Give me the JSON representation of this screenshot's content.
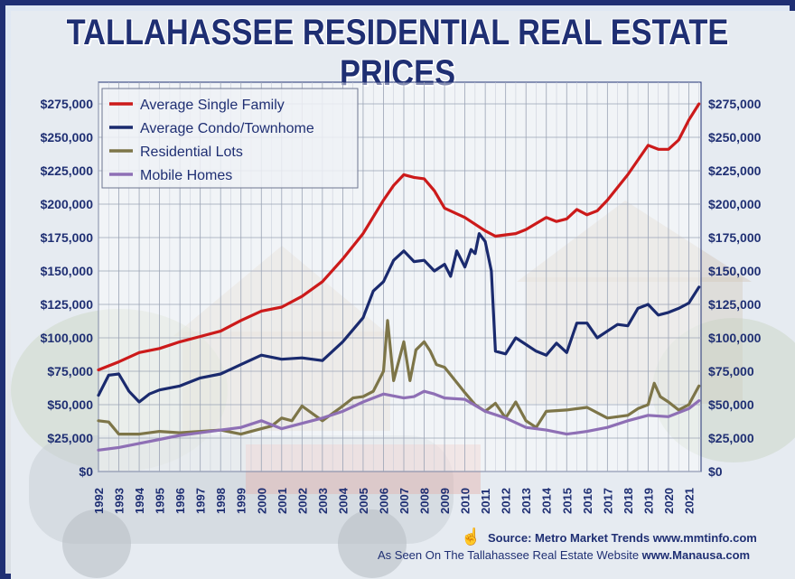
{
  "chart_data": {
    "type": "line",
    "title": "TALLAHASSEE RESIDENTIAL REAL ESTATE PRICES",
    "x_tick_labels": [
      "1992",
      "1993",
      "1994",
      "1995",
      "1996",
      "1997",
      "1998",
      "1999",
      "2000",
      "2001",
      "2002",
      "2003",
      "2004",
      "2005",
      "2006",
      "2007",
      "2008",
      "2009",
      "2010",
      "2011",
      "2012",
      "2013",
      "2014",
      "2015",
      "2016",
      "2017",
      "2018",
      "2019",
      "2020",
      "2021"
    ],
    "xlim": [
      1992,
      2021.6
    ],
    "ylim": [
      0,
      275000
    ],
    "y_ticks": [
      0,
      25000,
      50000,
      75000,
      100000,
      125000,
      150000,
      175000,
      200000,
      225000,
      250000,
      275000
    ],
    "y_tick_labels": [
      "$0",
      "$25,000",
      "$50,000",
      "$75,000",
      "$100,000",
      "$125,000",
      "$150,000",
      "$175,000",
      "$200,000",
      "$225,000",
      "$250,000",
      "$275,000"
    ],
    "grid": true,
    "legend_position": "top-left",
    "series": [
      {
        "name": "Average Single Family",
        "color": "#cc1a1a",
        "x": [
          1992,
          1993,
          1994,
          1995,
          1996,
          1997,
          1998,
          1999,
          2000,
          2001,
          2002,
          2003,
          2004,
          2005,
          2006,
          2006.5,
          2007,
          2007.5,
          2008,
          2008.5,
          2009,
          2010,
          2011,
          2011.5,
          2012,
          2012.5,
          2013,
          2014,
          2014.5,
          2015,
          2015.5,
          2016,
          2016.5,
          2017,
          2018,
          2019,
          2019.5,
          2020,
          2020.5,
          2021,
          2021.5
        ],
        "y": [
          76000,
          82000,
          89000,
          92000,
          97000,
          101000,
          105000,
          113000,
          120000,
          123000,
          131000,
          142000,
          159000,
          178000,
          203000,
          214000,
          222000,
          220000,
          219000,
          210000,
          197000,
          190000,
          180000,
          176000,
          177000,
          178000,
          181000,
          190000,
          187000,
          189000,
          196000,
          192000,
          195000,
          203000,
          222000,
          244000,
          241000,
          241000,
          248000,
          263000,
          275000
        ]
      },
      {
        "name": "Average Condo/Townhome",
        "color": "#1a2a6e",
        "x": [
          1992,
          1992.5,
          1993,
          1993.5,
          1994,
          1994.5,
          1995,
          1996,
          1997,
          1998,
          1999,
          2000,
          2001,
          2002,
          2003,
          2004,
          2005,
          2005.5,
          2006,
          2006.5,
          2007,
          2007.5,
          2008,
          2008.5,
          2009,
          2009.3,
          2009.6,
          2010,
          2010.3,
          2010.5,
          2010.7,
          2011,
          2011.3,
          2011.5,
          2012,
          2012.5,
          2013,
          2013.5,
          2014,
          2014.5,
          2015,
          2015.5,
          2016,
          2016.5,
          2017,
          2017.5,
          2018,
          2018.5,
          2019,
          2019.5,
          2020,
          2020.5,
          2021,
          2021.5
        ],
        "y": [
          57000,
          72000,
          73000,
          60000,
          52000,
          58000,
          61000,
          64000,
          70000,
          73000,
          80000,
          87000,
          84000,
          85000,
          83000,
          97000,
          115000,
          135000,
          142000,
          158000,
          165000,
          157000,
          158000,
          150000,
          155000,
          146000,
          165000,
          153000,
          166000,
          163000,
          178000,
          172000,
          150000,
          90000,
          88000,
          100000,
          95000,
          90000,
          87000,
          96000,
          89000,
          111000,
          111000,
          100000,
          105000,
          110000,
          109000,
          122000,
          125000,
          117000,
          119000,
          122000,
          126000,
          138000
        ]
      },
      {
        "name": "Residential Lots",
        "color": "#7d7548",
        "x": [
          1992,
          1992.5,
          1993,
          1994,
          1995,
          1996,
          1997,
          1998,
          1999,
          2000,
          2000.5,
          2001,
          2001.5,
          2002,
          2003,
          2004,
          2004.5,
          2005,
          2005.5,
          2006,
          2006.2,
          2006.5,
          2007,
          2007.3,
          2007.6,
          2008,
          2008.3,
          2008.6,
          2009,
          2010,
          2010.5,
          2011,
          2011.5,
          2012,
          2012.5,
          2013,
          2013.5,
          2014,
          2015,
          2016,
          2017,
          2018,
          2018.5,
          2019,
          2019.3,
          2019.6,
          2020,
          2020.5,
          2021,
          2021.5
        ],
        "y": [
          38000,
          37000,
          28000,
          28000,
          30000,
          29000,
          30000,
          31000,
          28000,
          32000,
          34000,
          40000,
          38000,
          49000,
          38000,
          49000,
          55000,
          56000,
          60000,
          75000,
          113000,
          68000,
          97000,
          68000,
          91000,
          97000,
          90000,
          80000,
          78000,
          59000,
          50000,
          45000,
          51000,
          40000,
          52000,
          38000,
          33000,
          45000,
          46000,
          48000,
          40000,
          42000,
          47000,
          50000,
          66000,
          56000,
          52000,
          46000,
          50000,
          64000
        ]
      },
      {
        "name": "Mobile Homes",
        "color": "#8e6fb5",
        "x": [
          1992,
          1993,
          1994,
          1995,
          1996,
          1997,
          1998,
          1999,
          2000,
          2001,
          2002,
          2003,
          2004,
          2005,
          2006,
          2007,
          2007.5,
          2008,
          2008.5,
          2009,
          2010,
          2011,
          2012,
          2013,
          2014,
          2015,
          2016,
          2017,
          2018,
          2019,
          2020,
          2021,
          2021.5
        ],
        "y": [
          16000,
          18000,
          21000,
          24000,
          27000,
          29000,
          31000,
          33000,
          38000,
          32000,
          36000,
          40000,
          45000,
          52000,
          58000,
          55000,
          56000,
          60000,
          58000,
          55000,
          54000,
          45000,
          40000,
          33000,
          31000,
          28000,
          30000,
          33000,
          38000,
          42000,
          41000,
          47000,
          53000
        ]
      }
    ]
  },
  "footer": {
    "source_line": "Source:  Metro Market Trends  www.mmtinfo.com",
    "seen_prefix": "As Seen On The Tallahassee Real Estate Website  ",
    "seen_url": "www.Manausa.com"
  }
}
